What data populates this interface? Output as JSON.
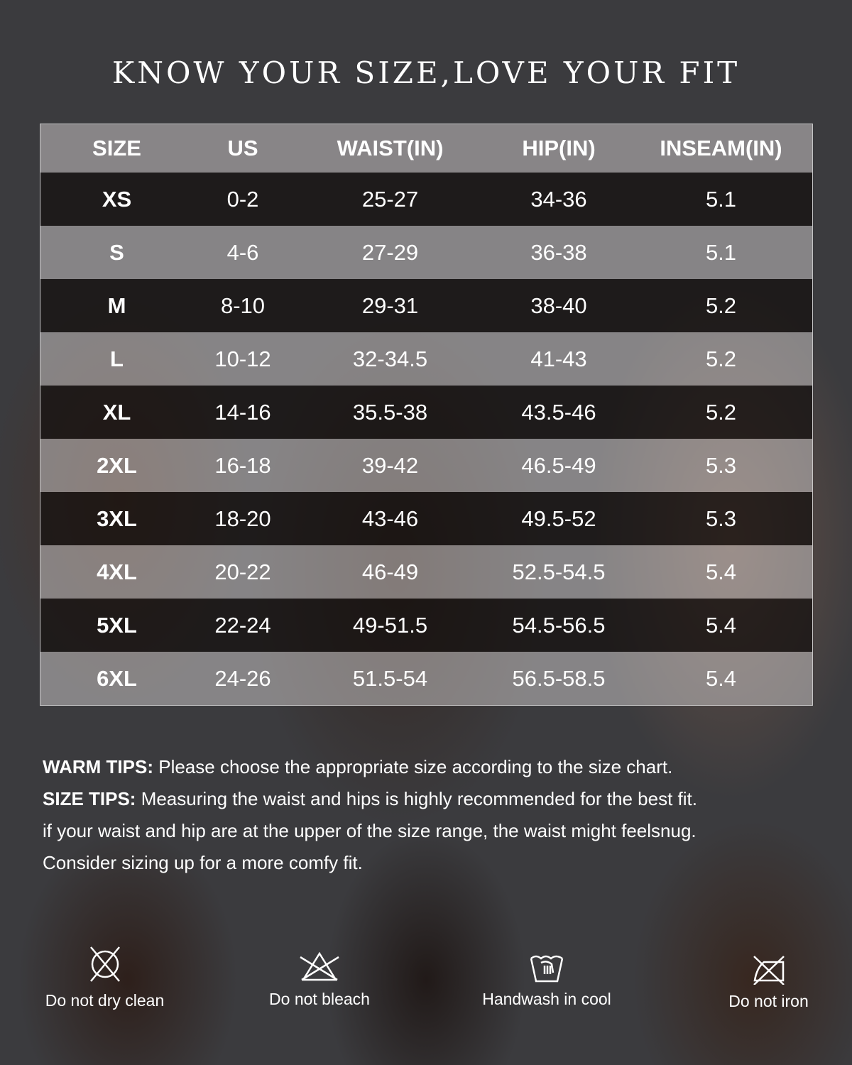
{
  "title": "KNOW YOUR SIZE,LOVE YOUR FIT",
  "table": {
    "headers": [
      "SIZE",
      "US",
      "WAIST(IN)",
      "HIP(IN)",
      "INSEAM(IN)"
    ],
    "rows": [
      [
        "XS",
        "0-2",
        "25-27",
        "34-36",
        "5.1"
      ],
      [
        "S",
        "4-6",
        "27-29",
        "36-38",
        "5.1"
      ],
      [
        "M",
        "8-10",
        "29-31",
        "38-40",
        "5.2"
      ],
      [
        "L",
        "10-12",
        "32-34.5",
        "41-43",
        "5.2"
      ],
      [
        "XL",
        "14-16",
        "35.5-38",
        "43.5-46",
        "5.2"
      ],
      [
        "2XL",
        "16-18",
        "39-42",
        "46.5-49",
        "5.3"
      ],
      [
        "3XL",
        "18-20",
        "43-46",
        "49.5-52",
        "5.3"
      ],
      [
        "4XL",
        "20-22",
        "46-49",
        "52.5-54.5",
        "5.4"
      ],
      [
        "5XL",
        "22-24",
        "49-51.5",
        "54.5-56.5",
        "5.4"
      ],
      [
        "6XL",
        "24-26",
        "51.5-54",
        "56.5-58.5",
        "5.4"
      ]
    ]
  },
  "tips": {
    "warm_label": "WARM TIPS:",
    "warm_text": " Please choose the appropriate size according to the size chart.",
    "size_label": "SIZE TIPS:",
    "size_text": " Measuring the waist and hips is highly recommended for the best fit.",
    "line3": "if your waist and hip are at the upper of the size range, the waist might feelsnug.",
    "line4": "Consider sizing up for a more comfy fit."
  },
  "care": [
    {
      "icon": "no-dry-clean-icon",
      "label": "Do not dry clean"
    },
    {
      "icon": "no-bleach-icon",
      "label": "Do not bleach"
    },
    {
      "icon": "handwash-icon",
      "label": "Handwash in cool"
    },
    {
      "icon": "no-iron-icon",
      "label": "Do not iron"
    }
  ]
}
